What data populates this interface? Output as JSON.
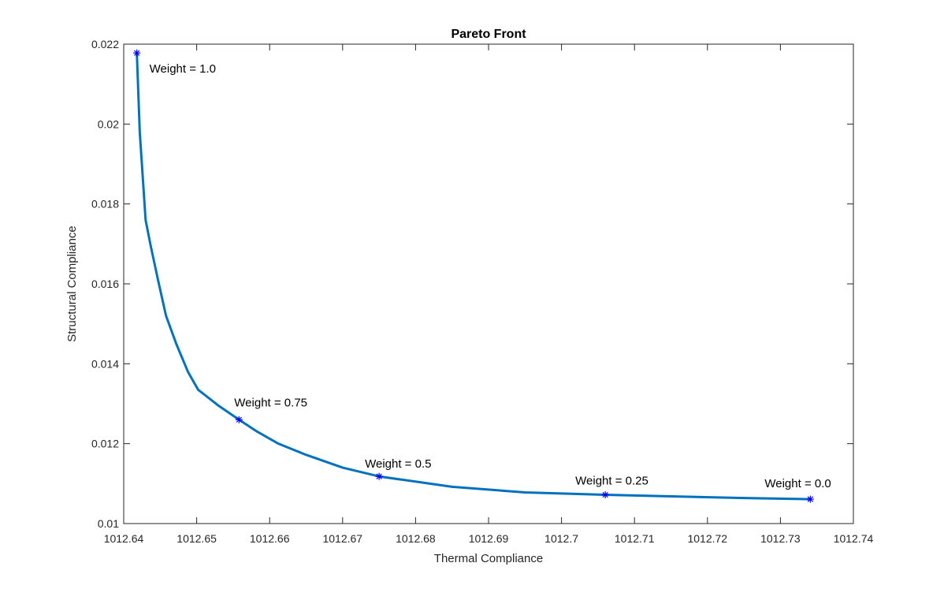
{
  "chart_data": {
    "type": "line",
    "title": "Pareto Front",
    "xlabel": "Thermal Compliance",
    "ylabel": "Structural Compliance",
    "xlim": [
      1012.64,
      1012.74
    ],
    "ylim": [
      0.01,
      0.022
    ],
    "xticks": [
      "1012.64",
      "1012.65",
      "1012.66",
      "1012.67",
      "1012.68",
      "1012.69",
      "1012.7",
      "1012.71",
      "1012.72",
      "1012.73",
      "1012.74"
    ],
    "yticks": [
      "0.01",
      "0.012",
      "0.014",
      "0.016",
      "0.018",
      "0.02",
      "0.022"
    ],
    "grid": false,
    "box": true,
    "series": [
      {
        "color": "#0072BD",
        "x": [
          1012.6418,
          1012.6422,
          1012.643,
          1012.6437,
          1012.6447,
          1012.6458,
          1012.6472,
          1012.6488,
          1012.6502,
          1012.653,
          1012.6558,
          1012.6583,
          1012.6612,
          1012.665,
          1012.67,
          1012.675,
          1012.685,
          1012.695,
          1012.706,
          1012.715,
          1012.725,
          1012.7341
        ],
        "y": [
          0.02178,
          0.0198,
          0.0176,
          0.01695,
          0.0161,
          0.0152,
          0.0145,
          0.0138,
          0.01335,
          0.01295,
          0.0126,
          0.0123,
          0.012,
          0.01172,
          0.0114,
          0.01118,
          0.01092,
          0.01078,
          0.01072,
          0.01068,
          0.01064,
          0.01061
        ]
      }
    ],
    "markers": {
      "color": "#0000FF",
      "symbol": "asterisk",
      "points": [
        {
          "x": 1012.6418,
          "y": 0.02178,
          "label": "Weight = 1.0"
        },
        {
          "x": 1012.6558,
          "y": 0.0126,
          "label": "Weight = 0.75"
        },
        {
          "x": 1012.675,
          "y": 0.01118,
          "label": "Weight = 0.5"
        },
        {
          "x": 1012.706,
          "y": 0.01072,
          "label": "Weight = 0.25"
        },
        {
          "x": 1012.7341,
          "y": 0.01061,
          "label": "Weight = 0.0"
        }
      ]
    }
  }
}
